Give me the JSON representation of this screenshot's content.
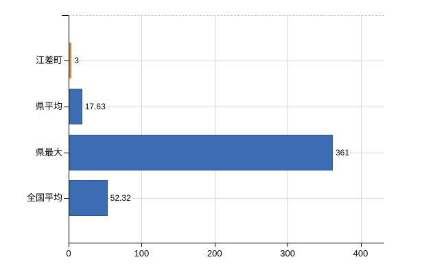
{
  "chart_data": {
    "type": "bar",
    "orientation": "horizontal",
    "title": "",
    "xlabel": "",
    "ylabel": "",
    "categories": [
      "江差町",
      "県平均",
      "県最大",
      "全国平均"
    ],
    "values": [
      3,
      17.63,
      361,
      52.32
    ],
    "value_labels": [
      "3",
      "17.63",
      "361",
      "52.32"
    ],
    "bar_colors": [
      "#ed8c23",
      "#3c6db4",
      "#3c6db4",
      "#3c6db4"
    ],
    "bar_border_colors": [
      "#d9780e",
      "#2f5a9c",
      "#2f5a9c",
      "#2f5a9c"
    ],
    "x_ticks": [
      0,
      100,
      200,
      300,
      400
    ],
    "x_tick_labels": [
      "0",
      "100",
      "200",
      "300",
      "400"
    ],
    "xlim": [
      0,
      432
    ],
    "grid": true,
    "legend": "none",
    "colors": {
      "grid": "#d6d6d6",
      "axis": "#000000",
      "background": "#ffffff",
      "text": "#000000"
    }
  }
}
